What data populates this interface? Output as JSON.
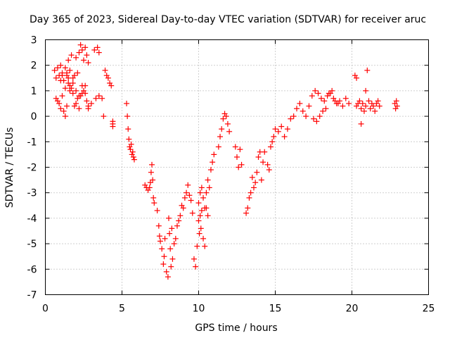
{
  "chart_data": {
    "type": "scatter",
    "title": "Day 365 of 2023, Sidereal Day-to-day VTEC variation (SDTVAR) for receiver aruc",
    "xlabel": "GPS time / hours",
    "ylabel": "SDTVAR / TECUs",
    "xlim": [
      0,
      25
    ],
    "ylim": [
      -7,
      3
    ],
    "xticks": [
      0,
      5,
      10,
      15,
      20,
      25
    ],
    "xtick_labels": [
      "0",
      "5",
      "10",
      "15",
      "20",
      "25"
    ],
    "yticks": [
      3,
      2,
      1,
      0,
      -1,
      -2,
      -3,
      -4,
      -5,
      -6,
      -7
    ],
    "ytick_labels": [
      "3",
      "2",
      "1",
      "0",
      "-1",
      "-2",
      "-3",
      "-4",
      "-5",
      "-6",
      "-7"
    ],
    "grid": true,
    "marker": "+",
    "color": "#ff0000",
    "series": [
      {
        "name": "SDTVAR",
        "x": [
          0.6,
          0.7,
          0.8,
          0.9,
          1.0,
          1.1,
          1.2,
          1.3,
          1.4,
          1.5,
          1.6,
          1.7,
          1.8,
          1.9,
          2.0,
          2.1,
          2.2,
          2.3,
          2.4,
          2.5,
          2.6,
          2.7,
          2.8,
          3.2,
          3.4,
          3.5,
          0.8,
          0.9,
          1.0,
          1.1,
          1.2,
          1.3,
          1.4,
          1.5,
          1.6,
          1.7,
          1.8,
          1.9,
          2.0,
          2.1,
          2.2,
          2.3,
          2.4,
          2.5,
          2.6,
          2.7,
          2.8,
          0.7,
          1.0,
          1.1,
          1.3,
          1.4,
          1.5,
          1.6,
          1.8,
          2.0,
          2.2,
          2.4,
          2.6,
          2.8,
          3.0,
          3.3,
          3.5,
          3.7,
          3.8,
          3.9,
          4.0,
          4.1,
          4.2,
          4.3,
          4.4,
          4.4,
          4.4,
          5.3,
          5.35,
          5.4,
          5.45,
          5.5,
          5.55,
          5.6,
          5.65,
          5.7,
          5.75,
          5.8,
          6.5,
          6.6,
          6.7,
          6.8,
          6.85,
          6.9,
          6.95,
          7.0,
          7.05,
          7.1,
          7.3,
          7.4,
          7.45,
          7.5,
          7.6,
          7.7,
          7.75,
          7.8,
          7.9,
          8.0,
          8.05,
          8.1,
          8.15,
          8.2,
          8.25,
          8.3,
          8.4,
          8.5,
          8.6,
          8.7,
          8.8,
          8.9,
          9.0,
          9.1,
          9.2,
          9.3,
          9.4,
          9.5,
          9.6,
          9.7,
          9.8,
          9.9,
          10.0,
          10.1,
          10.2,
          10.3,
          10.4,
          10.5,
          10.6,
          10.7,
          10.8,
          10.9,
          11.0,
          10.0,
          10.05,
          10.1,
          10.15,
          10.2,
          10.3,
          10.4,
          10.5,
          10.6,
          11.3,
          11.4,
          11.5,
          11.6,
          11.7,
          11.8,
          11.9,
          12.0,
          12.4,
          12.5,
          12.6,
          12.7,
          12.8,
          13.1,
          13.2,
          13.3,
          13.4,
          13.5,
          13.6,
          13.7,
          13.8,
          13.9,
          14.0,
          14.1,
          14.2,
          14.3,
          14.5,
          14.6,
          14.7,
          14.8,
          14.9,
          15.0,
          15.2,
          15.4,
          15.6,
          15.8,
          16.0,
          16.2,
          16.4,
          16.6,
          16.8,
          17.0,
          17.2,
          17.4,
          17.6,
          17.8,
          18.0,
          18.2,
          18.4,
          18.6,
          18.8,
          19.0,
          19.2,
          19.4,
          19.6,
          19.8,
          17.5,
          17.7,
          17.9,
          18.1,
          18.3,
          18.5,
          18.7,
          18.9,
          19.1,
          20.2,
          20.3,
          20.4,
          20.5,
          20.6,
          20.7,
          20.8,
          20.9,
          21.0,
          21.1,
          21.2,
          21.3,
          21.4,
          21.5,
          21.6,
          21.7,
          21.8,
          20.3,
          20.6,
          20.9,
          22.8,
          22.85,
          22.9,
          22.95
        ],
        "y": [
          1.8,
          1.5,
          1.9,
          1.6,
          2.0,
          1.7,
          1.4,
          1.9,
          1.6,
          2.2,
          1.8,
          2.4,
          1.5,
          1.6,
          2.3,
          1.7,
          2.5,
          2.8,
          2.6,
          2.2,
          2.7,
          2.4,
          2.1,
          2.6,
          2.7,
          2.5,
          0.6,
          0.5,
          0.3,
          0.8,
          0.2,
          0.0,
          0.4,
          1.3,
          1.0,
          1.1,
          0.9,
          0.4,
          0.5,
          0.7,
          0.3,
          0.8,
          1.2,
          1.0,
          0.9,
          0.6,
          0.3,
          0.7,
          1.4,
          1.6,
          1.1,
          1.7,
          1.5,
          1.2,
          1.3,
          1.0,
          0.8,
          0.9,
          1.2,
          0.4,
          0.5,
          0.7,
          0.8,
          0.7,
          0.0,
          1.8,
          1.6,
          1.5,
          1.3,
          1.2,
          -0.2,
          -0.3,
          -0.4,
          0.5,
          0.0,
          -0.5,
          -0.9,
          -1.2,
          -1.3,
          -1.1,
          -1.5,
          -1.4,
          -1.6,
          -1.7,
          -2.7,
          -2.8,
          -2.9,
          -2.8,
          -2.6,
          -2.2,
          -1.9,
          -2.5,
          -3.2,
          -3.4,
          -3.7,
          -4.3,
          -4.7,
          -4.9,
          -5.2,
          -5.8,
          -5.5,
          -4.8,
          -6.1,
          -6.3,
          -4.0,
          -4.6,
          -5.2,
          -5.9,
          -4.4,
          -5.6,
          -5.0,
          -4.8,
          -4.3,
          -4.1,
          -3.9,
          -3.5,
          -3.6,
          -3.2,
          -3.0,
          -2.7,
          -3.1,
          -3.3,
          -3.8,
          -5.6,
          -5.9,
          -5.1,
          -3.4,
          -3.0,
          -2.8,
          -3.2,
          -3.6,
          -3.0,
          -2.5,
          -2.8,
          -2.1,
          -1.8,
          -1.5,
          -4.1,
          -4.6,
          -3.9,
          -4.4,
          -3.7,
          -4.8,
          -5.1,
          -3.6,
          -3.9,
          -1.2,
          -0.8,
          -0.5,
          -0.1,
          0.1,
          0.0,
          -0.3,
          -0.6,
          -1.2,
          -1.6,
          -2.0,
          -1.3,
          -1.9,
          -3.8,
          -3.6,
          -3.2,
          -3.0,
          -2.4,
          -2.8,
          -2.6,
          -2.2,
          -1.6,
          -1.4,
          -2.5,
          -1.8,
          -1.4,
          -1.9,
          -2.1,
          -1.2,
          -1.0,
          -0.8,
          -0.5,
          -0.6,
          -0.4,
          -0.8,
          -0.5,
          -0.1,
          0.0,
          0.3,
          0.5,
          0.2,
          0.0,
          0.4,
          0.8,
          1.0,
          0.9,
          0.7,
          0.6,
          0.8,
          0.9,
          0.7,
          0.5,
          0.6,
          0.4,
          0.7,
          0.5,
          -0.1,
          -0.2,
          0.0,
          0.2,
          0.3,
          0.9,
          1.0,
          0.6,
          0.5,
          1.6,
          0.4,
          0.5,
          0.6,
          0.3,
          0.5,
          0.2,
          0.4,
          1.8,
          0.6,
          0.3,
          0.5,
          0.4,
          0.2,
          0.5,
          0.6,
          0.4,
          1.5,
          -0.3,
          1.0,
          0.5,
          0.3,
          0.6,
          0.4
        ]
      }
    ]
  }
}
